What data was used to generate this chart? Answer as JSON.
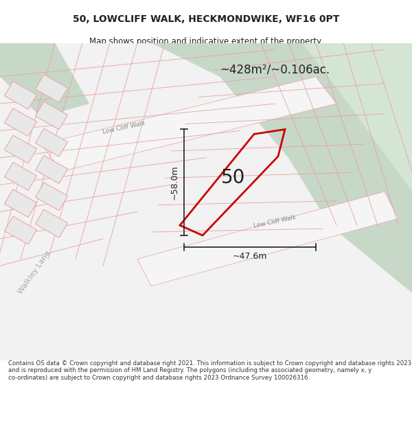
{
  "title_line1": "50, LOWCLIFF WALK, HECKMONDWIKE, WF16 0PT",
  "title_line2": "Map shows position and indicative extent of the property.",
  "area_label": "~428m²/~0.106ac.",
  "width_label": "~47.6m",
  "height_label": "~58.0m",
  "plot_number": "50",
  "road_label1": "Low Cliff Walk",
  "road_label2": "Low Cliff Walk",
  "road_label3": "Walkley Lane",
  "copyright_text": "Contains OS data © Crown copyright and database right 2021. This information is subject to Crown copyright and database rights 2023 and is reproduced with the permission of HM Land Registry. The polygons (including the associated geometry, namely x, y co-ordinates) are subject to Crown copyright and database rights 2023 Ordnance Survey 100026316.",
  "bg_map_color": "#f2f2f2",
  "bg_green_color": "#c8d8c8",
  "road_fill_color": "#ffffff",
  "building_fill_color": "#e8e8e8",
  "building_stroke_color": "#e8a0a0",
  "road_stroke_color": "#e8a0a0",
  "highlight_polygon_color": "#cc0000",
  "dim_line_color": "#222222",
  "title_color": "#222222",
  "copyright_color": "#333333"
}
